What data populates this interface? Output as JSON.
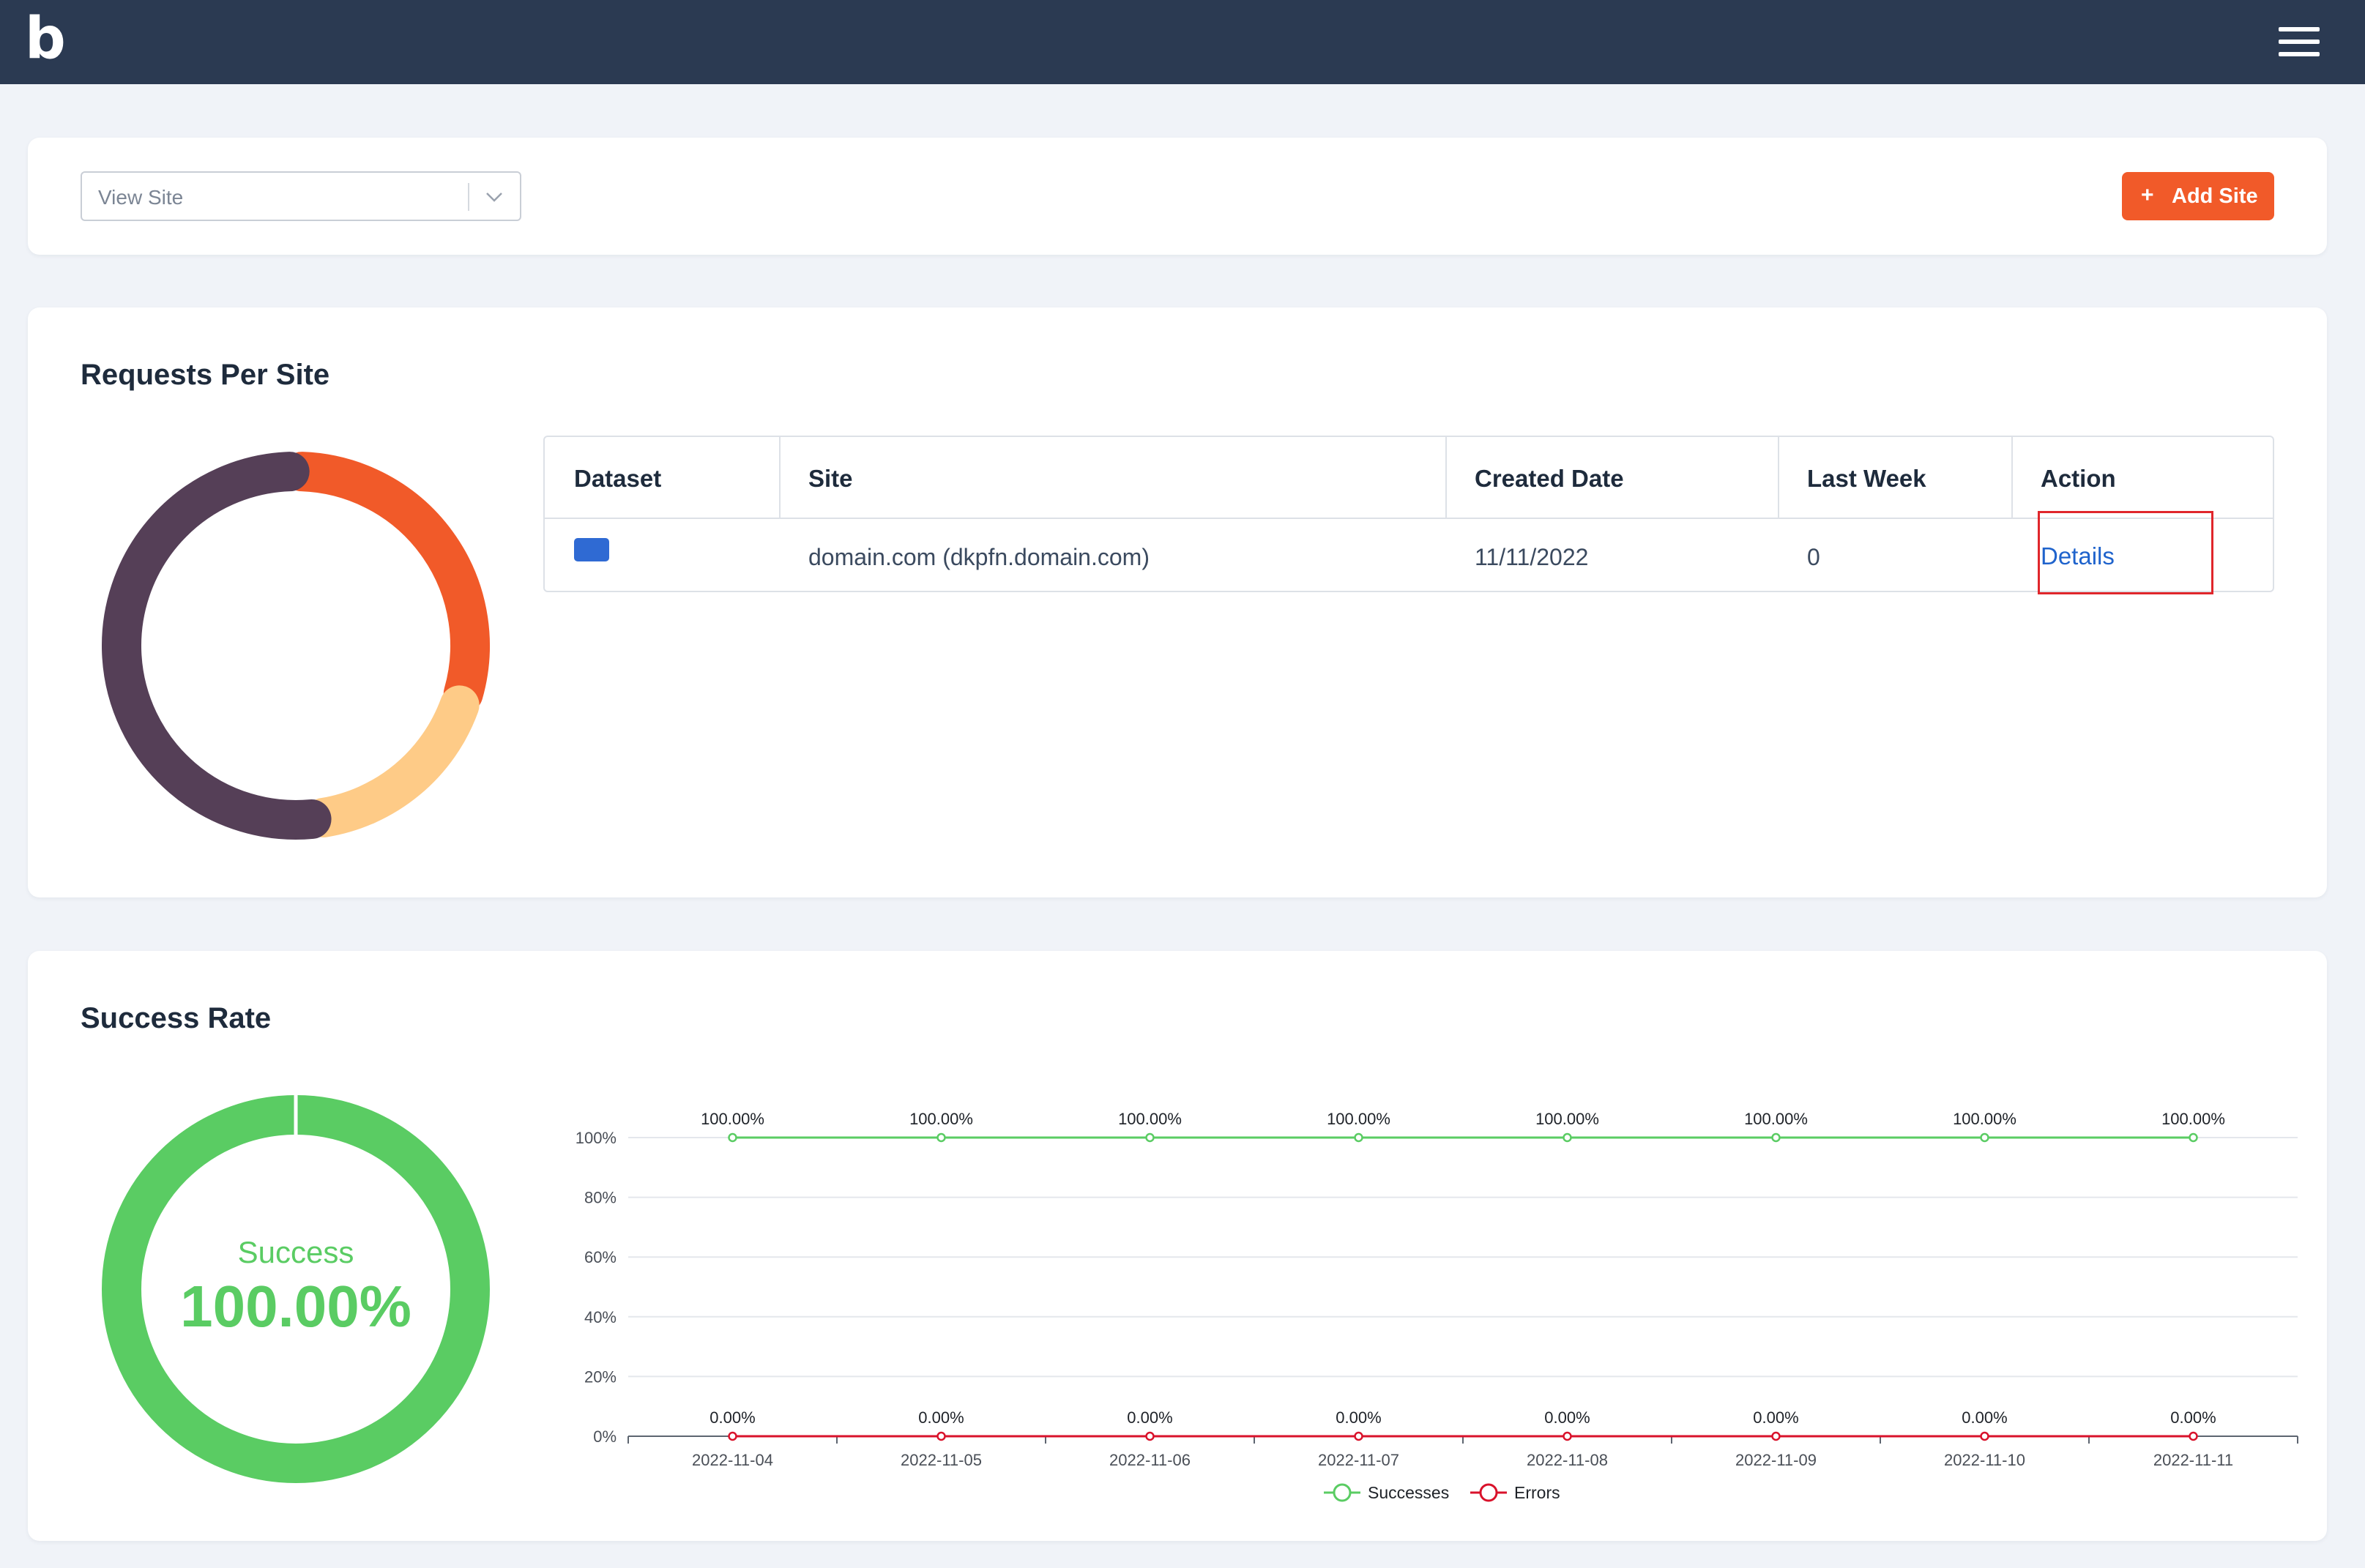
{
  "app": {
    "logo_text": "b"
  },
  "toolbar": {
    "view_site_placeholder": "View Site",
    "add_site_plus": "+",
    "add_site_label": "Add Site"
  },
  "requests_card": {
    "title": "Requests Per Site",
    "columns": [
      "Dataset",
      "Site",
      "Created Date",
      "Last Week",
      "Action"
    ],
    "rows": [
      {
        "dataset_color": "#2f6ad3",
        "site": "domain.com (dkpfn.domain.com)",
        "created_date": "11/11/2022",
        "last_week": "0",
        "action": "Details"
      }
    ]
  },
  "success_card": {
    "title": "Success Rate",
    "gauge_label": "Success",
    "gauge_value": "100.00%"
  },
  "chart_data": [
    {
      "type": "pie",
      "values": [
        30,
        18,
        52
      ],
      "colors": [
        "#f15a29",
        "#fecb87",
        "#553f57"
      ],
      "style": "donut"
    },
    {
      "type": "line",
      "x": [
        "2022-11-04",
        "2022-11-05",
        "2022-11-06",
        "2022-11-07",
        "2022-11-08",
        "2022-11-09",
        "2022-11-10",
        "2022-11-11"
      ],
      "series": [
        {
          "name": "Successes",
          "values": [
            100,
            100,
            100,
            100,
            100,
            100,
            100,
            100
          ],
          "color": "#5acc63"
        },
        {
          "name": "Errors",
          "values": [
            0,
            0,
            0,
            0,
            0,
            0,
            0,
            0
          ],
          "color": "#d9122b"
        }
      ],
      "data_labels": [
        "100.00%",
        "100.00%",
        "100.00%",
        "100.00%",
        "100.00%",
        "100.00%",
        "100.00%",
        "100.00%"
      ],
      "error_labels": [
        "0.00%",
        "0.00%",
        "0.00%",
        "0.00%",
        "0.00%",
        "0.00%",
        "0.00%",
        "0.00%"
      ],
      "y_ticks": [
        "0%",
        "20%",
        "40%",
        "60%",
        "80%",
        "100%"
      ],
      "ylim": [
        0,
        100
      ],
      "grid": true,
      "legend": "bottom"
    }
  ]
}
